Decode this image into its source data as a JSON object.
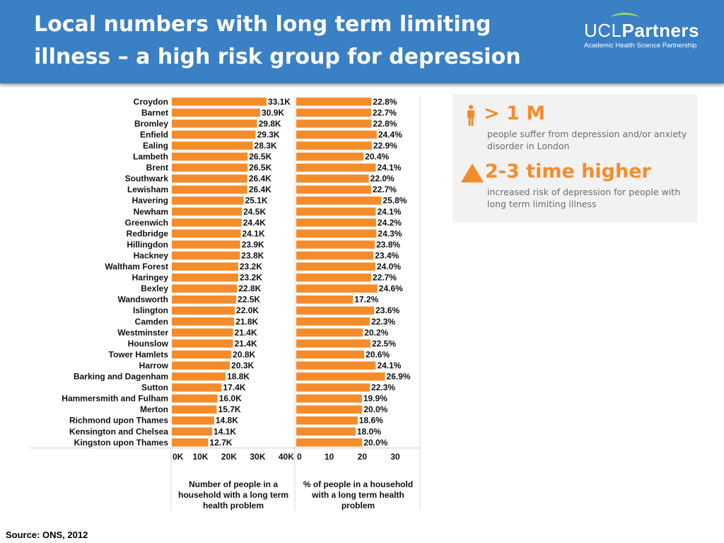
{
  "header": {
    "title_line1": "Local numbers with long term limiting",
    "title_line2": "illness – a high risk group for depression",
    "logo_light": "UCL",
    "logo_bold": "Partners",
    "logo_sub": "Academic Health Science Partnership"
  },
  "info": {
    "stat1": "> 1 M",
    "desc1_line1": "people suffer from depression and/or anxiety",
    "desc1_line2": "disorder in London",
    "stat2": "2-3 time higher",
    "desc2_line1": "increased risk of depression for people with",
    "desc2_line2": "long term limiting illness",
    "accent_color": "#f58c2b",
    "icons": [
      "person-icon",
      "triangle-icon"
    ]
  },
  "source": "Source: ONS, 2012",
  "chart_data": {
    "type": "bar",
    "orientation": "horizontal",
    "bar_color": "#f58c2b",
    "categories": [
      "Croydon",
      "Barnet",
      "Bromley",
      "Enfield",
      "Ealing",
      "Lambeth",
      "Brent",
      "Southwark",
      "Lewisham",
      "Havering",
      "Newham",
      "Greenwich",
      "Redbridge",
      "Hillingdon",
      "Hackney",
      "Waltham Forest",
      "Haringey",
      "Bexley",
      "Wandsworth",
      "Islington",
      "Camden",
      "Westminster",
      "Hounslow",
      "Tower Hamlets",
      "Harrow",
      "Barking and Dagenham",
      "Sutton",
      "Hammersmith and Fulham",
      "Merton",
      "Richmond upon Thames",
      "Kensington and Chelsea",
      "Kingston upon Thames"
    ],
    "series": [
      {
        "name": "Number of people in a household with a long term health problem",
        "values": [
          33.1,
          30.9,
          29.8,
          29.3,
          28.3,
          26.5,
          26.5,
          26.4,
          26.4,
          25.1,
          24.5,
          24.4,
          24.1,
          23.9,
          23.8,
          23.2,
          23.2,
          22.8,
          22.5,
          22.0,
          21.8,
          21.4,
          21.4,
          20.8,
          20.3,
          18.8,
          17.4,
          16.0,
          15.7,
          14.8,
          14.1,
          12.7
        ],
        "labels": [
          "33.1K",
          "30.9K",
          "29.8K",
          "29.3K",
          "28.3K",
          "26.5K",
          "26.5K",
          "26.4K",
          "26.4K",
          "25.1K",
          "24.5K",
          "24.4K",
          "24.1K",
          "23.9K",
          "23.8K",
          "23.2K",
          "23.2K",
          "22.8K",
          "22.5K",
          "22.0K",
          "21.8K",
          "21.4K",
          "21.4K",
          "20.8K",
          "20.3K",
          "18.8K",
          "17.4K",
          "16.0K",
          "15.7K",
          "14.8K",
          "14.1K",
          "12.7K"
        ],
        "xlim": [
          0,
          43
        ],
        "ticks": [
          0,
          10,
          20,
          30,
          40
        ],
        "tick_labels": [
          "0K",
          "10K",
          "20K",
          "30K",
          "40K"
        ],
        "xlabel_lines": [
          "Number of people in a",
          "household with a long term",
          "health problem"
        ]
      },
      {
        "name": "% of people in a household with a long term health problem",
        "values": [
          22.8,
          22.7,
          22.8,
          24.4,
          22.9,
          20.4,
          24.1,
          22.0,
          22.7,
          25.8,
          24.1,
          24.2,
          24.3,
          23.8,
          23.4,
          24.0,
          22.7,
          24.6,
          17.2,
          23.6,
          22.3,
          20.2,
          22.5,
          20.6,
          24.1,
          26.9,
          22.3,
          19.9,
          20.0,
          18.6,
          18.0,
          20.0
        ],
        "labels": [
          "22.8%",
          "22.7%",
          "22.8%",
          "24.4%",
          "22.9%",
          "20.4%",
          "24.1%",
          "22.0%",
          "22.7%",
          "25.8%",
          "24.1%",
          "24.2%",
          "24.3%",
          "23.8%",
          "23.4%",
          "24.0%",
          "22.7%",
          "24.6%",
          "17.2%",
          "23.6%",
          "22.3%",
          "20.2%",
          "22.5%",
          "20.6%",
          "24.1%",
          "26.9%",
          "22.3%",
          "19.9%",
          "20.0%",
          "18.6%",
          "18.0%",
          "20.0%"
        ],
        "xlim": [
          0,
          37.5
        ],
        "ticks": [
          0,
          10,
          20,
          30
        ],
        "tick_labels": [
          "0",
          "10",
          "20",
          "30"
        ],
        "xlabel_lines": [
          "% of people in a household",
          "with a long term health",
          "problem"
        ]
      }
    ]
  }
}
